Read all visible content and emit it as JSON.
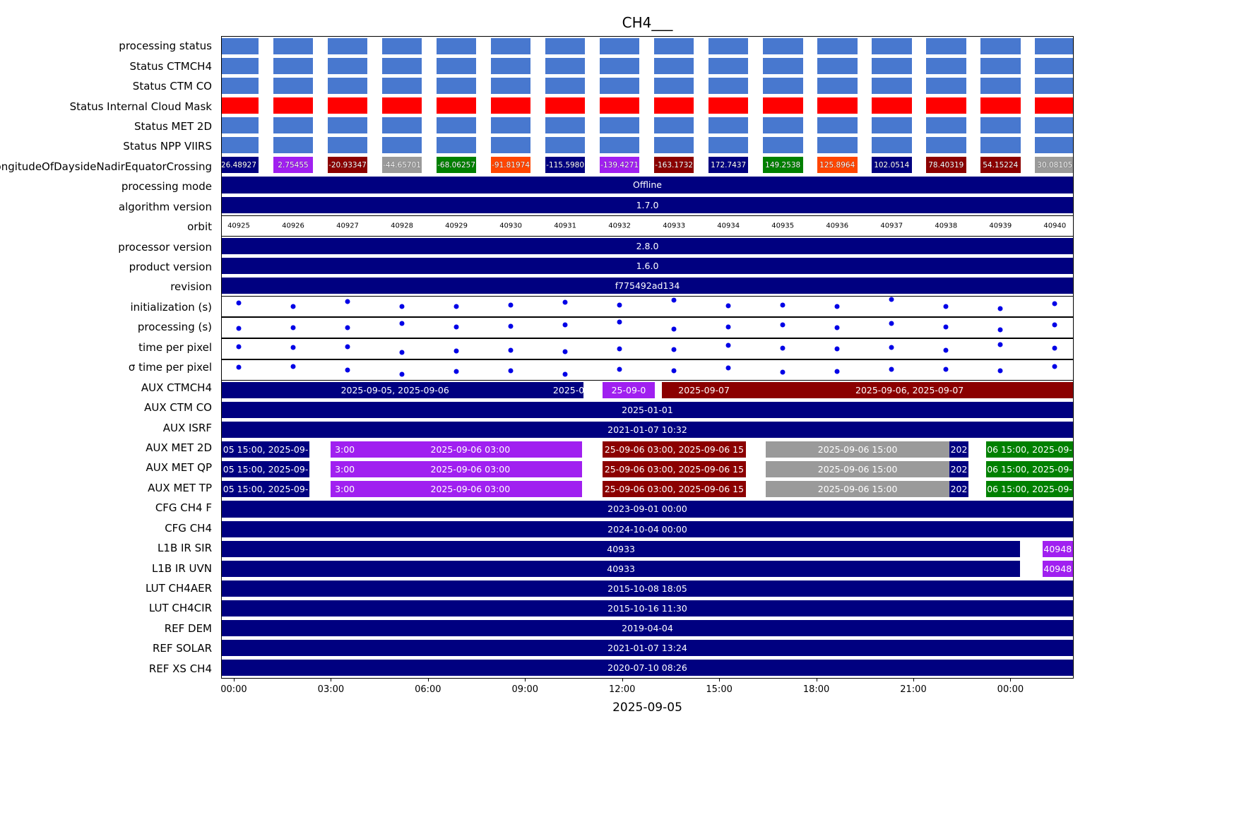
{
  "colors": {
    "blue": "#4878CF",
    "navy": "#000080",
    "red": "#FF0000",
    "purple": "#A020F0",
    "darkred": "#8B0000",
    "gray": "#9A9A9A",
    "green": "#008000",
    "orange": "#FF4500",
    "dot": "#0000E6",
    "bar_text": "#FFFFFF",
    "axis_text": "#000000"
  },
  "chart_data": {
    "type": "timeline_status",
    "title": "CH4___",
    "xlabel": "2025-09-05",
    "x_tick_labels": [
      "00:00",
      "03:00",
      "06:00",
      "09:00",
      "12:00",
      "15:00",
      "18:00",
      "21:00",
      "00:00"
    ],
    "orbit_numbers": [
      "40925",
      "40926",
      "40927",
      "40928",
      "40929",
      "40930",
      "40931",
      "40932",
      "40933",
      "40934",
      "40935",
      "40936",
      "40937",
      "40938",
      "40939",
      "40940"
    ],
    "rows": [
      {
        "label": "processing status",
        "type": "bars",
        "color": "blue"
      },
      {
        "label": "Status CTMCH4",
        "type": "bars",
        "color": "blue"
      },
      {
        "label": "Status CTM CO",
        "type": "bars",
        "color": "blue"
      },
      {
        "label": "Status Internal Cloud Mask",
        "type": "bars",
        "color": "red"
      },
      {
        "label": "Status MET 2D",
        "type": "bars",
        "color": "blue"
      },
      {
        "label": "Status NPP VIIRS",
        "type": "bars",
        "color": "blue"
      },
      {
        "label": "LongitudeOfDaysideNadirEquatorCrossing",
        "type": "value_bars",
        "values": [
          {
            "value": "26.48927",
            "color": "navy"
          },
          {
            "value": "2.75455",
            "color": "purple"
          },
          {
            "value": "-20.93347",
            "color": "darkred"
          },
          {
            "value": "-44.65701",
            "color": "gray"
          },
          {
            "value": "-68.06257",
            "color": "green"
          },
          {
            "value": "-91.81974",
            "color": "orange"
          },
          {
            "value": "-115.5980",
            "color": "navy"
          },
          {
            "value": "-139.4271",
            "color": "purple"
          },
          {
            "value": "-163.1732",
            "color": "darkred"
          },
          {
            "value": "172.7437",
            "color": "navy"
          },
          {
            "value": "149.2538",
            "color": "green"
          },
          {
            "value": "125.8964",
            "color": "orange"
          },
          {
            "value": "102.0514",
            "color": "navy"
          },
          {
            "value": "78.40319",
            "color": "darkred"
          },
          {
            "value": "54.15224",
            "color": "darkred"
          },
          {
            "value": "30.08105",
            "color": "gray"
          }
        ]
      },
      {
        "label": "processing mode",
        "type": "solid",
        "color": "navy",
        "text": "Offline"
      },
      {
        "label": "algorithm version",
        "type": "solid",
        "color": "navy",
        "text": "1.7.0"
      },
      {
        "label": "orbit",
        "type": "orbit_labels"
      },
      {
        "label": "processor version",
        "type": "solid",
        "color": "navy",
        "text": "2.8.0"
      },
      {
        "label": "product version",
        "type": "solid",
        "color": "navy",
        "text": "1.6.0"
      },
      {
        "label": "revision",
        "type": "solid",
        "color": "navy",
        "text": "f775492ad134"
      },
      {
        "label": "initialization (s)",
        "type": "scatter",
        "y": [
          0.32,
          0.5,
          0.27,
          0.52,
          0.5,
          0.42,
          0.3,
          0.45,
          0.2,
          0.48,
          0.42,
          0.5,
          0.15,
          0.52,
          0.6,
          0.38
        ]
      },
      {
        "label": "processing (s)",
        "type": "scatter",
        "y": [
          0.55,
          0.5,
          0.52,
          0.3,
          0.48,
          0.42,
          0.36,
          0.22,
          0.58,
          0.45,
          0.35,
          0.5,
          0.3,
          0.45,
          0.62,
          0.35
        ]
      },
      {
        "label": "time per pixel",
        "type": "scatter",
        "y": [
          0.4,
          0.42,
          0.38,
          0.68,
          0.6,
          0.58,
          0.64,
          0.5,
          0.52,
          0.33,
          0.47,
          0.5,
          0.42,
          0.58,
          0.3,
          0.47
        ]
      },
      {
        "label": "σ time per pixel",
        "type": "scatter",
        "y": [
          0.36,
          0.32,
          0.5,
          0.72,
          0.58,
          0.55,
          0.7,
          0.45,
          0.52,
          0.4,
          0.62,
          0.58,
          0.48,
          0.45,
          0.55,
          0.32
        ]
      },
      {
        "label": "AUX CTMCH4",
        "type": "segments",
        "segments": [
          {
            "x0": 0.0,
            "x1": 0.407,
            "color": "navy",
            "text": "2025-09-05, 2025-09-06"
          },
          {
            "x0": 0.407,
            "x1": 0.425,
            "color": "navy",
            "text": "2025-09-0",
            "clip": false
          },
          {
            "x0": 0.447,
            "x1": 0.509,
            "color": "purple",
            "text": "25-09-0"
          },
          {
            "x0": 0.517,
            "x1": 0.616,
            "color": "darkred",
            "text": "2025-09-07"
          },
          {
            "x0": 0.616,
            "x1": 1.0,
            "color": "darkred",
            "text": "2025-09-06, 2025-09-07"
          }
        ]
      },
      {
        "label": "AUX CTM CO",
        "type": "solid",
        "color": "navy",
        "text": "2025-01-01"
      },
      {
        "label": "AUX ISRF",
        "type": "solid",
        "color": "navy",
        "text": "2021-01-07 10:32"
      },
      {
        "label": "AUX MET 2D",
        "type": "segments",
        "segments": [
          {
            "x0": 0.0,
            "x1": 0.103,
            "color": "navy",
            "text": "05 15:00, 2025-09-"
          },
          {
            "x0": 0.128,
            "x1": 0.161,
            "color": "purple",
            "text": "3:00"
          },
          {
            "x0": 0.161,
            "x1": 0.423,
            "color": "purple",
            "text": "2025-09-06 03:00"
          },
          {
            "x0": 0.447,
            "x1": 0.616,
            "color": "darkred",
            "text": "25-09-06 03:00, 2025-09-06 15"
          },
          {
            "x0": 0.639,
            "x1": 0.855,
            "color": "gray",
            "text": "2025-09-06 15:00"
          },
          {
            "x0": 0.855,
            "x1": 0.877,
            "color": "navy",
            "text": "202"
          },
          {
            "x0": 0.898,
            "x1": 1.0,
            "color": "green",
            "text": "06 15:00, 2025-09-"
          }
        ]
      },
      {
        "label": "AUX MET QP",
        "type": "segments",
        "segments": [
          {
            "x0": 0.0,
            "x1": 0.103,
            "color": "navy",
            "text": "05 15:00, 2025-09-"
          },
          {
            "x0": 0.128,
            "x1": 0.161,
            "color": "purple",
            "text": "3:00"
          },
          {
            "x0": 0.161,
            "x1": 0.423,
            "color": "purple",
            "text": "2025-09-06 03:00"
          },
          {
            "x0": 0.447,
            "x1": 0.616,
            "color": "darkred",
            "text": "25-09-06 03:00, 2025-09-06 15"
          },
          {
            "x0": 0.639,
            "x1": 0.855,
            "color": "gray",
            "text": "2025-09-06 15:00"
          },
          {
            "x0": 0.855,
            "x1": 0.877,
            "color": "navy",
            "text": "202"
          },
          {
            "x0": 0.898,
            "x1": 1.0,
            "color": "green",
            "text": "06 15:00, 2025-09-"
          }
        ]
      },
      {
        "label": "AUX MET TP",
        "type": "segments",
        "segments": [
          {
            "x0": 0.0,
            "x1": 0.103,
            "color": "navy",
            "text": "05 15:00, 2025-09-"
          },
          {
            "x0": 0.128,
            "x1": 0.161,
            "color": "purple",
            "text": "3:00"
          },
          {
            "x0": 0.161,
            "x1": 0.423,
            "color": "purple",
            "text": "2025-09-06 03:00"
          },
          {
            "x0": 0.447,
            "x1": 0.616,
            "color": "darkred",
            "text": "25-09-06 03:00, 2025-09-06 15"
          },
          {
            "x0": 0.639,
            "x1": 0.855,
            "color": "gray",
            "text": "2025-09-06 15:00"
          },
          {
            "x0": 0.855,
            "x1": 0.877,
            "color": "navy",
            "text": "202"
          },
          {
            "x0": 0.898,
            "x1": 1.0,
            "color": "green",
            "text": "06 15:00, 2025-09-"
          }
        ]
      },
      {
        "label": "CFG CH4  F",
        "type": "solid",
        "color": "navy",
        "text": "2023-09-01 00:00"
      },
      {
        "label": "CFG CH4",
        "type": "solid",
        "color": "navy",
        "text": "2024-10-04 00:00"
      },
      {
        "label": "L1B IR SIR",
        "type": "segments",
        "segments": [
          {
            "x0": 0.0,
            "x1": 0.938,
            "color": "navy",
            "text": "40933"
          },
          {
            "x0": 0.964,
            "x1": 1.0,
            "color": "purple",
            "text": "40948"
          }
        ]
      },
      {
        "label": "L1B IR UVN",
        "type": "segments",
        "segments": [
          {
            "x0": 0.0,
            "x1": 0.938,
            "color": "navy",
            "text": "40933"
          },
          {
            "x0": 0.964,
            "x1": 1.0,
            "color": "purple",
            "text": "40948"
          }
        ]
      },
      {
        "label": "LUT CH4AER",
        "type": "solid",
        "color": "navy",
        "text": "2015-10-08 18:05"
      },
      {
        "label": "LUT CH4CIR",
        "type": "solid",
        "color": "navy",
        "text": "2015-10-16 11:30"
      },
      {
        "label": "REF DEM",
        "type": "solid",
        "color": "navy",
        "text": "2019-04-04"
      },
      {
        "label": "REF SOLAR",
        "type": "solid",
        "color": "navy",
        "text": "2021-01-07 13:24"
      },
      {
        "label": "REF XS CH4",
        "type": "solid",
        "color": "navy",
        "text": "2020-07-10 08:26"
      }
    ]
  }
}
